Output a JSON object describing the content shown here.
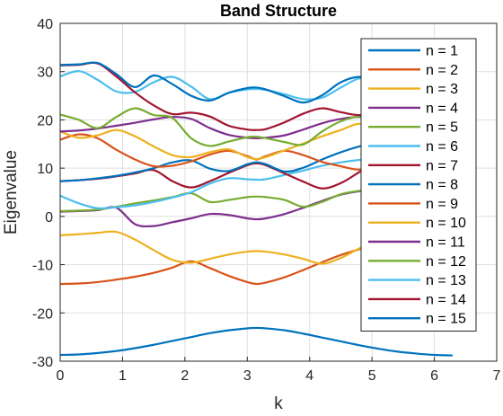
{
  "chart_data": {
    "type": "line",
    "title": "Band Structure",
    "xlabel": "k",
    "ylabel": "Eigenvalue",
    "xlim": [
      0,
      7
    ],
    "ylim": [
      -30,
      40
    ],
    "xticks": [
      "0",
      "1",
      "2",
      "3",
      "4",
      "5",
      "6",
      "7"
    ],
    "yticks": [
      "-30",
      "-20",
      "-10",
      "0",
      "10",
      "20",
      "30",
      "40"
    ],
    "grid": true,
    "legend_position": "top-right",
    "x": [
      0,
      0.3,
      0.6,
      0.9,
      1.2,
      1.5,
      1.8,
      2.1,
      2.4,
      2.7,
      3.0,
      3.15,
      3.3,
      3.6,
      3.9,
      4.2,
      4.5,
      4.8,
      5.1,
      5.4,
      5.7,
      6.0,
      6.28
    ],
    "series": [
      {
        "name": "n = 1",
        "color": "#0072BD",
        "values": [
          -28.7,
          -28.6,
          -28.3,
          -27.9,
          -27.3,
          -26.6,
          -25.8,
          -25.0,
          -24.2,
          -23.6,
          -23.2,
          -23.1,
          -23.2,
          -23.6,
          -24.3,
          -25.1,
          -25.9,
          -26.7,
          -27.4,
          -28.0,
          -28.4,
          -28.7,
          -28.8
        ]
      },
      {
        "name": "n = 2",
        "color": "#D95319",
        "values": [
          -14.0,
          -13.9,
          -13.6,
          -13.1,
          -12.5,
          -11.7,
          -10.6,
          -9.3,
          -10.7,
          -12.3,
          -13.6,
          -14.0,
          -13.7,
          -12.6,
          -11.1,
          -9.5,
          -8.0,
          -6.8,
          -5.6,
          -4.5,
          -3.7,
          -3.2,
          -3.0
        ]
      },
      {
        "name": "n = 3",
        "color": "#EDB120",
        "values": [
          -3.9,
          -3.7,
          -3.4,
          -3.2,
          -4.8,
          -7.0,
          -9.0,
          -9.6,
          -8.8,
          -7.9,
          -7.3,
          -7.2,
          -7.3,
          -7.9,
          -8.8,
          -9.8,
          -8.6,
          -6.6,
          -4.9,
          -4.0,
          -3.7,
          -3.6,
          -3.6
        ]
      },
      {
        "name": "n = 4",
        "color": "#7E2F8E",
        "values": [
          1.0,
          1.1,
          1.3,
          1.8,
          -1.6,
          -2.0,
          -1.2,
          -0.4,
          0.5,
          0.3,
          -0.4,
          -0.6,
          -0.4,
          0.5,
          1.8,
          3.2,
          4.5,
          5.2,
          5.4,
          5.5,
          5.6,
          5.6,
          5.6
        ]
      },
      {
        "name": "n = 5",
        "color": "#77AC30",
        "values": [
          1.1,
          1.2,
          1.4,
          2.0,
          2.7,
          3.3,
          4.0,
          4.8,
          3.0,
          3.4,
          4.0,
          4.1,
          4.0,
          3.4,
          2.0,
          3.0,
          4.6,
          5.3,
          5.6,
          5.8,
          5.9,
          5.9,
          5.9
        ]
      },
      {
        "name": "n = 6",
        "color": "#4DBEEE",
        "values": [
          4.3,
          2.7,
          1.7,
          1.9,
          2.3,
          3.0,
          3.9,
          5.0,
          6.8,
          7.9,
          7.7,
          7.6,
          7.7,
          8.6,
          9.5,
          10.5,
          11.2,
          11.7,
          12.0,
          12.2,
          12.3,
          12.4,
          12.4
        ]
      },
      {
        "name": "n = 7",
        "color": "#A2142F",
        "values": [
          7.3,
          7.5,
          7.8,
          8.3,
          8.9,
          9.6,
          7.3,
          6.0,
          7.3,
          9.0,
          10.6,
          11.0,
          10.6,
          8.9,
          7.2,
          5.8,
          6.9,
          9.2,
          11.3,
          12.9,
          13.7,
          14.0,
          14.1
        ]
      },
      {
        "name": "n = 8",
        "color": "#0072BD",
        "values": [
          7.3,
          7.5,
          7.9,
          8.4,
          9.1,
          10.0,
          11.2,
          11.6,
          9.9,
          9.4,
          10.8,
          11.2,
          10.8,
          9.3,
          10.1,
          11.8,
          13.3,
          14.5,
          15.4,
          16.1,
          16.5,
          16.7,
          16.8
        ]
      },
      {
        "name": "n = 9",
        "color": "#D95319",
        "values": [
          15.9,
          17.0,
          16.2,
          13.8,
          11.8,
          10.4,
          10.5,
          11.4,
          12.8,
          13.6,
          12.5,
          11.8,
          12.5,
          13.6,
          12.7,
          11.3,
          10.4,
          9.7,
          10.6,
          11.9,
          12.9,
          13.5,
          13.7
        ]
      },
      {
        "name": "n = 10",
        "color": "#EDB120",
        "values": [
          17.6,
          16.3,
          16.8,
          17.9,
          16.6,
          14.5,
          12.7,
          12.3,
          13.3,
          13.9,
          12.3,
          11.9,
          12.3,
          13.7,
          15.1,
          16.6,
          17.9,
          19.2,
          18.0,
          16.8,
          16.0,
          15.6,
          15.5
        ]
      },
      {
        "name": "n = 11",
        "color": "#7E2F8E",
        "values": [
          17.6,
          17.8,
          18.2,
          18.8,
          19.4,
          20.1,
          20.6,
          20.2,
          18.3,
          16.9,
          16.3,
          16.2,
          16.3,
          16.8,
          18.0,
          19.3,
          20.2,
          20.6,
          20.0,
          19.0,
          18.3,
          17.9,
          17.8
        ]
      },
      {
        "name": "n = 12",
        "color": "#77AC30",
        "values": [
          21.1,
          20.0,
          18.3,
          20.6,
          22.4,
          21.0,
          20.4,
          16.2,
          14.6,
          15.5,
          16.4,
          16.5,
          16.2,
          15.4,
          14.9,
          17.6,
          19.7,
          20.7,
          20.2,
          19.6,
          19.3,
          19.1,
          19.1
        ]
      },
      {
        "name": "n = 13",
        "color": "#4DBEEE",
        "values": [
          29.0,
          30.1,
          28.3,
          25.9,
          25.8,
          27.8,
          28.9,
          26.9,
          24.3,
          25.6,
          26.3,
          26.4,
          26.2,
          25.3,
          24.3,
          24.6,
          26.7,
          28.6,
          28.3,
          27.0,
          26.1,
          25.6,
          25.5
        ]
      },
      {
        "name": "n = 14",
        "color": "#A2142F",
        "values": [
          31.3,
          31.4,
          31.7,
          29.0,
          25.7,
          23.0,
          21.2,
          21.5,
          20.7,
          18.8,
          18.0,
          17.9,
          18.1,
          19.5,
          21.3,
          22.4,
          21.6,
          21.0,
          21.9,
          23.3,
          24.4,
          25.0,
          25.2
        ]
      },
      {
        "name": "n = 15",
        "color": "#0072BD",
        "values": [
          31.4,
          31.5,
          31.8,
          29.5,
          26.8,
          29.2,
          27.4,
          25.0,
          24.0,
          25.6,
          26.6,
          26.7,
          26.3,
          24.9,
          23.6,
          25.1,
          27.8,
          28.9,
          27.4,
          26.4,
          25.8,
          25.5,
          25.4
        ]
      }
    ]
  }
}
